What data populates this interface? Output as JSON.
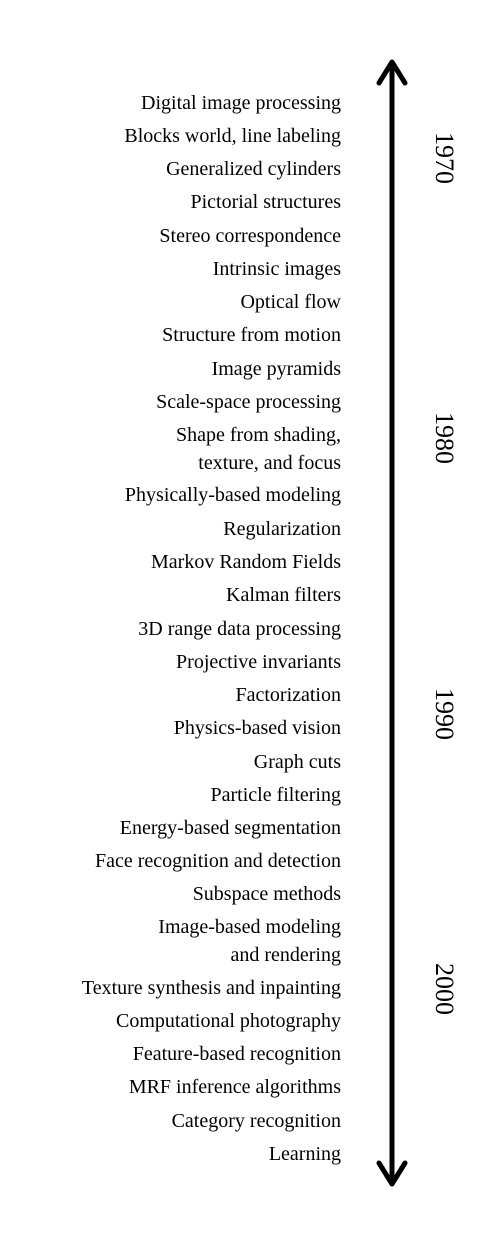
{
  "topics": [
    "Digital image processing",
    "Blocks world, line labeling",
    "Generalized cylinders",
    "Pictorial structures",
    "Stereo correspondence",
    "Intrinsic images",
    "Optical flow",
    "Structure from motion",
    "Image pyramids",
    "Scale-space processing",
    "Shape from shading,",
    "texture, and focus",
    "Physically-based  modeling",
    "Regularization",
    "Markov Random Fields",
    "Kalman filters",
    "3D range data processing",
    "Projective invariants",
    "Factorization",
    "Physics-based vision",
    "Graph cuts",
    "Particle filtering",
    "Energy-based segmentation",
    "Face recognition and detection",
    "Subspace methods",
    "Image-based modeling",
    "and rendering",
    "Texture synthesis and inpainting",
    "Computational photography",
    "Feature-based  recognition",
    "MRF inference algorithms",
    "Category recognition",
    "Learning"
  ],
  "decades": [
    "1970",
    "1980",
    "1990",
    "2000"
  ],
  "colors": {
    "text": "#000000",
    "arrow": "#000000",
    "background": "#ffffff"
  }
}
